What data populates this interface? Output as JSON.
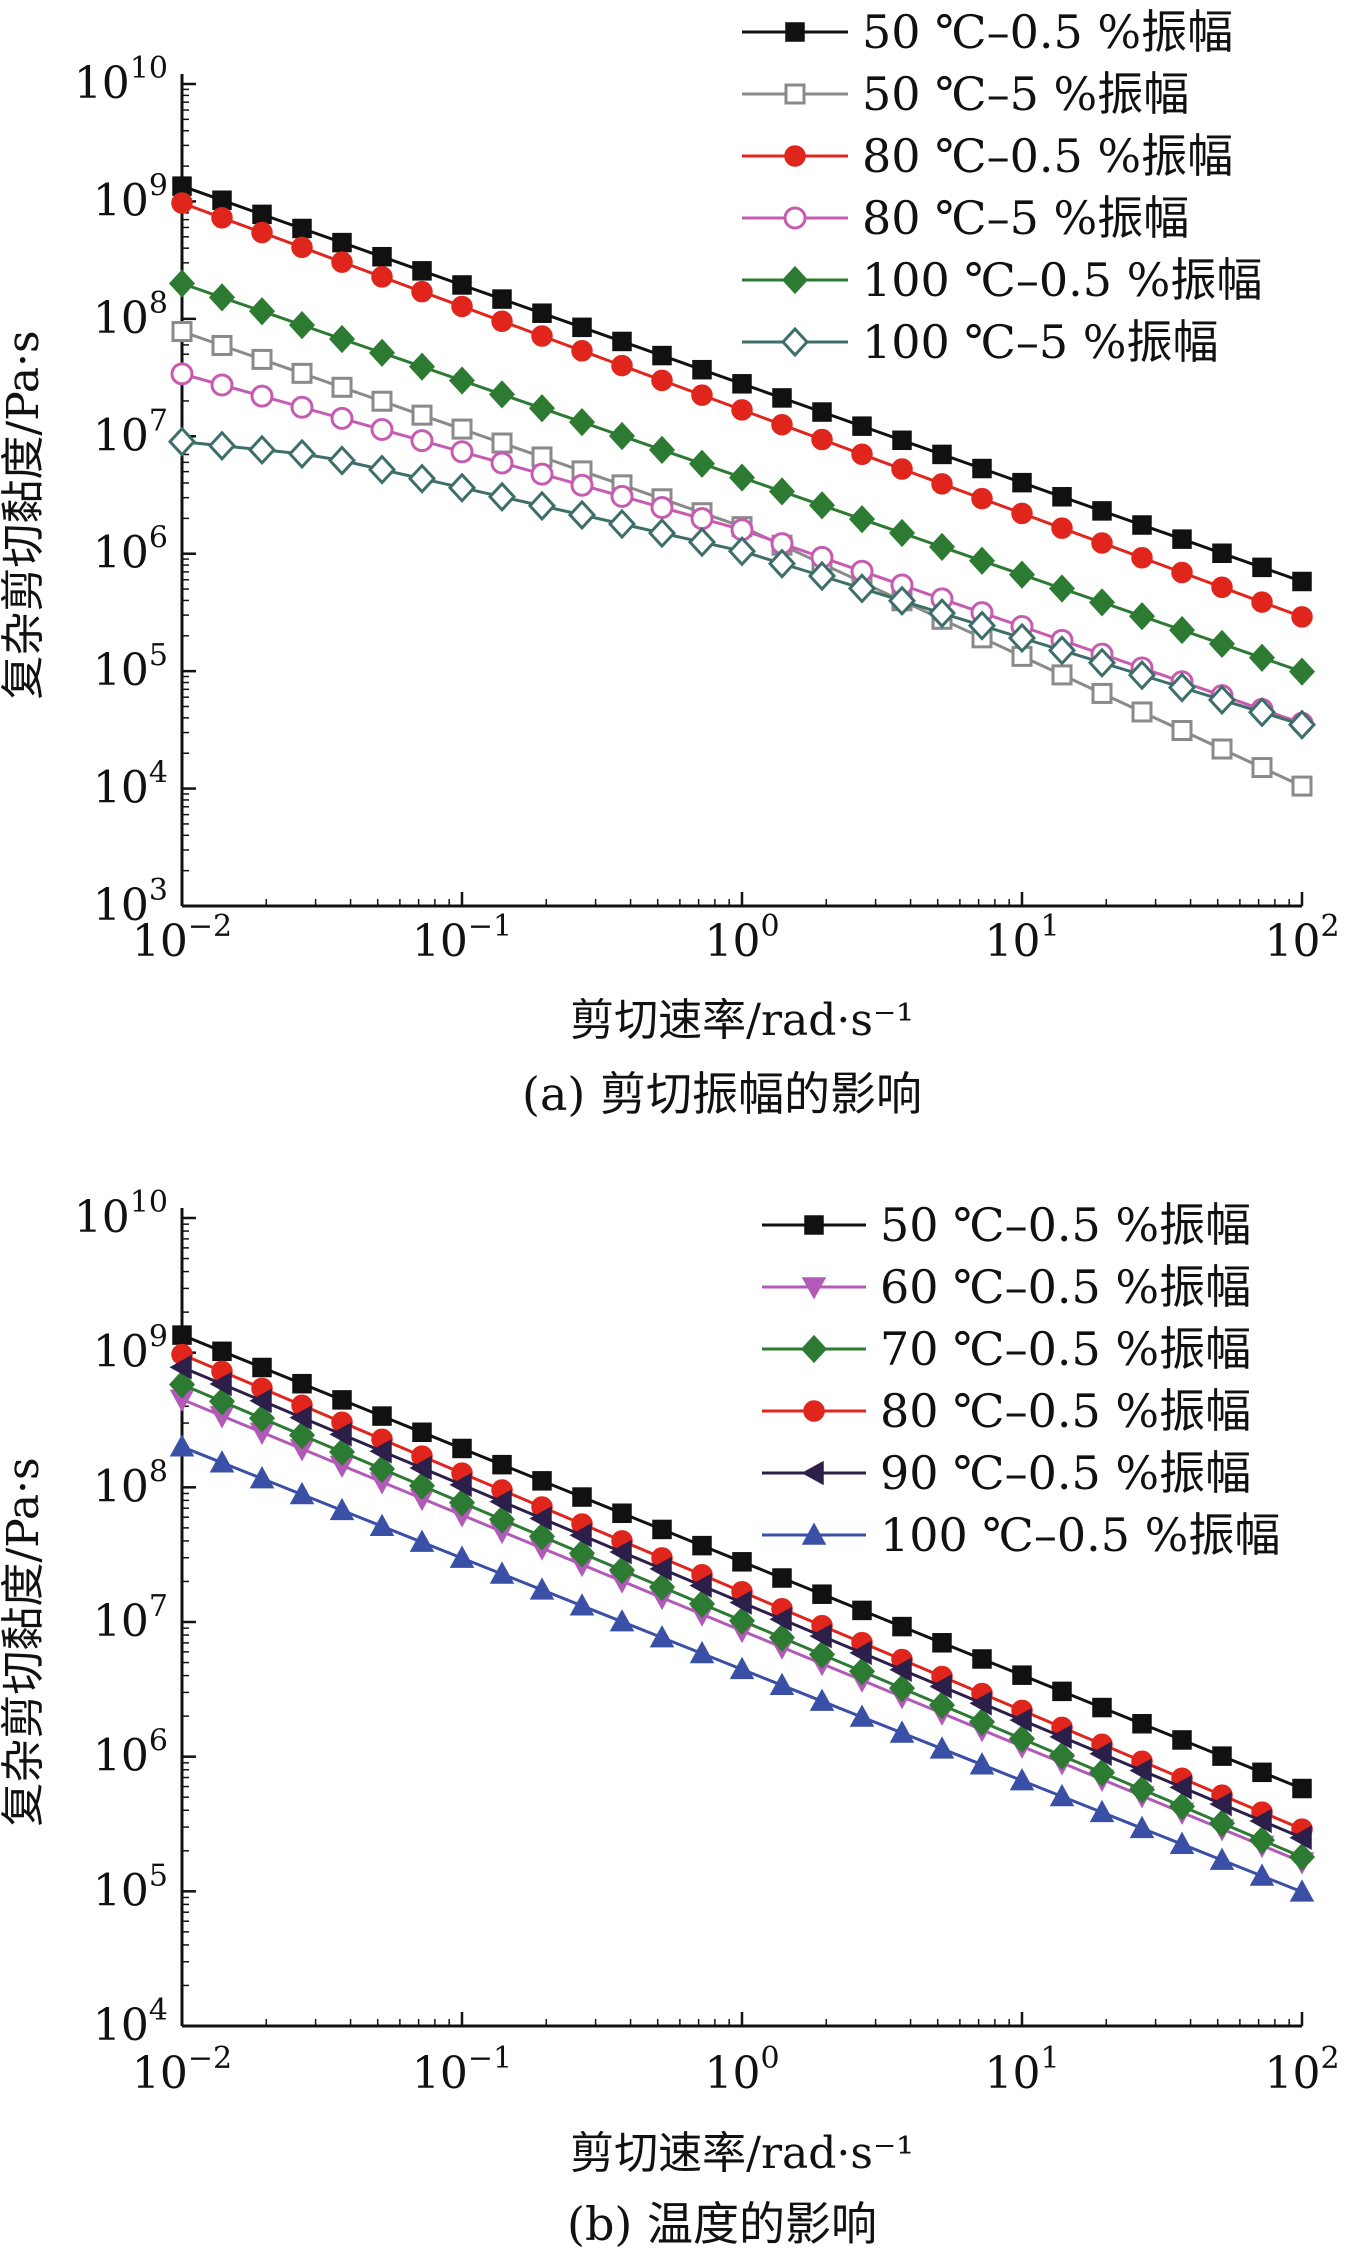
{
  "chart_data": [
    {
      "type": "line",
      "caption": "(a) 剪切振幅的影响",
      "xlabel": "剪切速率/rad·s⁻¹",
      "ylabel": "复杂剪切黏度/Pa·s",
      "xscale": "log",
      "yscale": "log",
      "xlim": [
        0.01,
        100
      ],
      "ylim": [
        1000,
        10000000000
      ],
      "x_ticks": [
        {
          "v": 0.01,
          "base": "10",
          "exp": "−2"
        },
        {
          "v": 0.1,
          "base": "10",
          "exp": "−1"
        },
        {
          "v": 1,
          "base": "10",
          "exp": "0"
        },
        {
          "v": 10,
          "base": "10",
          "exp": "1"
        },
        {
          "v": 100,
          "base": "10",
          "exp": "2"
        }
      ],
      "y_ticks": [
        {
          "v": 1000,
          "base": "10",
          "exp": "3"
        },
        {
          "v": 10000,
          "base": "10",
          "exp": "4"
        },
        {
          "v": 100000,
          "base": "10",
          "exp": "5"
        },
        {
          "v": 1000000,
          "base": "10",
          "exp": "6"
        },
        {
          "v": 10000000,
          "base": "10",
          "exp": "7"
        },
        {
          "v": 100000000,
          "base": "10",
          "exp": "8"
        },
        {
          "v": 1000000000,
          "base": "10",
          "exp": "9"
        },
        {
          "v": 10000000000,
          "base": "10",
          "exp": "10"
        }
      ],
      "legend_position": "top-right",
      "grid": false,
      "series": [
        {
          "name": "50 ℃–0.5 %振幅",
          "color": "#111111",
          "marker": "square",
          "filled": true,
          "x0": 0.01,
          "x1": 100,
          "y0": 1350000000,
          "y1": 580000
        },
        {
          "name": "50 ℃–5 %振幅",
          "color": "#8a8a8a",
          "marker": "square",
          "filled": false,
          "x0": 0.01,
          "x1": 100,
          "y0": 78000000,
          "y1": 10500,
          "breaks": [
            {
              "x": 1,
              "y": 1700000
            }
          ]
        },
        {
          "name": "80 ℃–0.5 %振幅",
          "color": "#e0261c",
          "marker": "circle",
          "filled": true,
          "x0": 0.01,
          "x1": 100,
          "y0": 970000000,
          "y1": 290000
        },
        {
          "name": "80 ℃–5 %振幅",
          "color": "#c65bb1",
          "marker": "circle",
          "filled": false,
          "x0": 0.01,
          "x1": 100,
          "y0": 34000000,
          "y1": 36000,
          "breaks": [
            {
              "x": 1,
              "y": 1600000
            }
          ]
        },
        {
          "name": "100 ℃–0.5 %振幅",
          "color": "#2d7a32",
          "marker": "diamond",
          "filled": true,
          "x0": 0.01,
          "x1": 100,
          "y0": 200000000,
          "y1": 99000
        },
        {
          "name": "100 ℃–5 %振幅",
          "color": "#3e6e6a",
          "marker": "diamond",
          "filled": false,
          "x0": 0.01,
          "x1": 100,
          "y0": 9000000,
          "y1": 35000,
          "breaks": [
            {
              "x": 0.0316,
              "y": 6800000
            },
            {
              "x": 1,
              "y": 1050000
            }
          ]
        }
      ]
    },
    {
      "type": "line",
      "caption": "(b) 温度的影响",
      "xlabel": "剪切速率/rad·s⁻¹",
      "ylabel": "复杂剪切黏度/Pa·s",
      "xscale": "log",
      "yscale": "log",
      "xlim": [
        0.01,
        100
      ],
      "ylim": [
        10000,
        10000000000
      ],
      "x_ticks": [
        {
          "v": 0.01,
          "base": "10",
          "exp": "−2"
        },
        {
          "v": 0.1,
          "base": "10",
          "exp": "−1"
        },
        {
          "v": 1,
          "base": "10",
          "exp": "0"
        },
        {
          "v": 10,
          "base": "10",
          "exp": "1"
        },
        {
          "v": 100,
          "base": "10",
          "exp": "2"
        }
      ],
      "y_ticks": [
        {
          "v": 10000,
          "base": "10",
          "exp": "4"
        },
        {
          "v": 100000,
          "base": "10",
          "exp": "5"
        },
        {
          "v": 1000000,
          "base": "10",
          "exp": "6"
        },
        {
          "v": 10000000,
          "base": "10",
          "exp": "7"
        },
        {
          "v": 100000000,
          "base": "10",
          "exp": "8"
        },
        {
          "v": 1000000000,
          "base": "10",
          "exp": "9"
        },
        {
          "v": 10000000000,
          "base": "10",
          "exp": "10"
        }
      ],
      "legend_position": "top-right",
      "grid": false,
      "series": [
        {
          "name": "50 ℃–0.5 %振幅",
          "color": "#111111",
          "marker": "square",
          "filled": true,
          "x0": 0.01,
          "x1": 100,
          "y0": 1350000000,
          "y1": 580000
        },
        {
          "name": "60 ℃–0.5 %振幅",
          "color": "#b25ab8",
          "marker": "triangle-down",
          "filled": true,
          "x0": 0.01,
          "x1": 100,
          "y0": 450000000,
          "y1": 165000
        },
        {
          "name": "70 ℃–0.5 %振幅",
          "color": "#2d7a32",
          "marker": "diamond",
          "filled": true,
          "x0": 0.01,
          "x1": 100,
          "y0": 580000000,
          "y1": 180000
        },
        {
          "name": "80 ℃–0.5 %振幅",
          "color": "#e0261c",
          "marker": "circle",
          "filled": true,
          "x0": 0.01,
          "x1": 100,
          "y0": 970000000,
          "y1": 290000
        },
        {
          "name": "90 ℃–0.5 %振幅",
          "color": "#2c1f4a",
          "marker": "triangle-left",
          "filled": true,
          "x0": 0.01,
          "x1": 100,
          "y0": 780000000,
          "y1": 250000
        },
        {
          "name": "100 ℃–0.5 %振幅",
          "color": "#3a4fa6",
          "marker": "triangle-up",
          "filled": true,
          "x0": 0.01,
          "x1": 100,
          "y0": 200000000,
          "y1": 99000
        }
      ]
    }
  ]
}
